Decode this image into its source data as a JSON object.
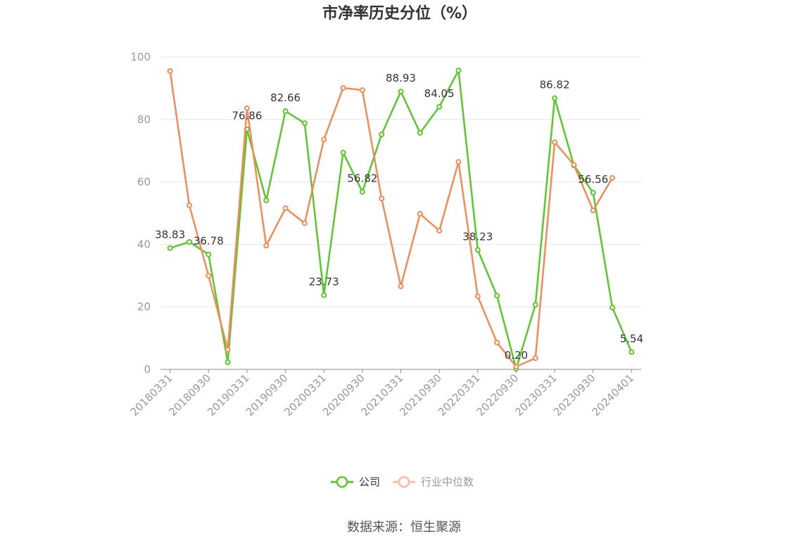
{
  "chart_data": {
    "type": "line",
    "title": "市净率历史分位（%）",
    "xlabel": "",
    "ylabel": "",
    "ylim": [
      0,
      100
    ],
    "yticks": [
      0,
      20,
      40,
      60,
      80,
      100
    ],
    "grid": "horizontal",
    "legend": "bottom",
    "x": [
      "20180331",
      null,
      "20180930",
      null,
      "20190331",
      null,
      "20190930",
      null,
      "20200331",
      null,
      "20200930",
      null,
      "20210331",
      null,
      "20210930",
      null,
      "20220331",
      null,
      "20220930",
      null,
      "20230331",
      null,
      "20230930",
      null,
      "20240401"
    ],
    "series": [
      {
        "name": "公司",
        "color": "#5ac72b",
        "values": [
          38.83,
          40.8,
          36.78,
          2.3,
          76.86,
          54.1,
          82.66,
          78.8,
          23.73,
          69.4,
          56.82,
          75.2,
          88.93,
          75.7,
          84.05,
          95.7,
          38.23,
          23.6,
          0.2,
          20.7,
          86.82,
          65.3,
          56.56,
          19.8,
          5.54
        ],
        "data_labels": [
          "38.83",
          null,
          "36.78",
          null,
          "76.86",
          null,
          "82.66",
          null,
          "23.73",
          null,
          "56.82",
          null,
          "88.93",
          null,
          "84.05",
          null,
          "38.23",
          null,
          "0.20",
          null,
          "86.82",
          null,
          "56.56",
          null,
          "5.54"
        ]
      },
      {
        "name": "行业中位数",
        "color": "#f28b57",
        "legend_color": "#f7bca3",
        "values": [
          95.5,
          52.5,
          30.0,
          6.3,
          83.6,
          39.6,
          51.6,
          46.8,
          73.6,
          90.1,
          89.4,
          54.7,
          26.6,
          49.8,
          44.4,
          66.4,
          23.4,
          8.6,
          0.9,
          3.6,
          72.7,
          65.5,
          50.9,
          61.3,
          null
        ]
      }
    ]
  },
  "source": "数据来源：恒生聚源"
}
